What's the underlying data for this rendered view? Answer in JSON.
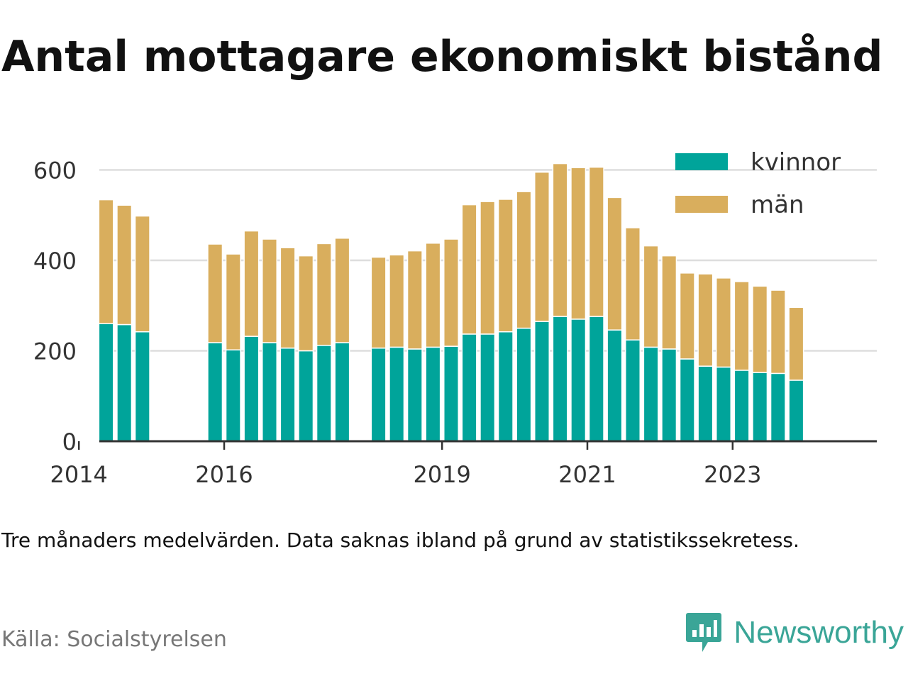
{
  "title": "Antal mottagare ekonomiskt bistånd",
  "note": "Tre månaders medelvärden. Data saknas ibland på grund av statistikssekretess.",
  "source": "Källa: Socialstyrelsen",
  "brand": {
    "name": "Newsworthy",
    "icon": "newsworthy-logo-icon",
    "color": "#3aa597"
  },
  "colors": {
    "kvinnor": "#00a49a",
    "man": "#d9ae5d",
    "grid": "#dddddd",
    "axis": "#333333"
  },
  "chart_data": {
    "type": "bar",
    "stacked": true,
    "title": "Antal mottagare ekonomiskt bistånd",
    "xlabel": "",
    "ylabel": "",
    "ylim": [
      0,
      630
    ],
    "yticks": [
      0,
      200,
      400,
      600
    ],
    "xticks": [
      "2014",
      "2016",
      "2019",
      "2021",
      "2023"
    ],
    "grid": true,
    "legend_position": "top-right",
    "categories": [
      "2014-01",
      "2014-04",
      "2014-07",
      "2014-10",
      "2015-01",
      "2015-04",
      "2015-07",
      "2015-10",
      "2016-01",
      "2016-04",
      "2016-07",
      "2016-10",
      "2017-01",
      "2017-04",
      "2017-07",
      "2017-10",
      "2018-01",
      "2018-04",
      "2018-07",
      "2018-10",
      "2019-01",
      "2019-04",
      "2019-07",
      "2019-10",
      "2020-01",
      "2020-04",
      "2020-07",
      "2020-10",
      "2021-01",
      "2021-04",
      "2021-07",
      "2021-10",
      "2022-01",
      "2022-04",
      "2022-07",
      "2022-10",
      "2023-01",
      "2023-04",
      "2023-07",
      "2023-10"
    ],
    "series": [
      {
        "name": "kvinnor",
        "color": "#00a49a",
        "values": [
          null,
          260,
          258,
          242,
          null,
          null,
          null,
          218,
          202,
          232,
          218,
          206,
          200,
          212,
          218,
          null,
          206,
          208,
          204,
          208,
          210,
          237,
          237,
          242,
          250,
          265,
          276,
          270,
          276,
          246,
          224,
          208,
          204,
          182,
          166,
          164,
          157,
          152,
          150,
          135
        ]
      },
      {
        "name": "män",
        "color": "#d9ae5d",
        "values": [
          null,
          274,
          264,
          256,
          null,
          null,
          null,
          218,
          212,
          233,
          229,
          222,
          210,
          225,
          231,
          null,
          201,
          204,
          217,
          230,
          237,
          286,
          293,
          293,
          302,
          330,
          338,
          335,
          330,
          293,
          248,
          224,
          206,
          190,
          204,
          197,
          196,
          191,
          184,
          161
        ]
      }
    ]
  }
}
